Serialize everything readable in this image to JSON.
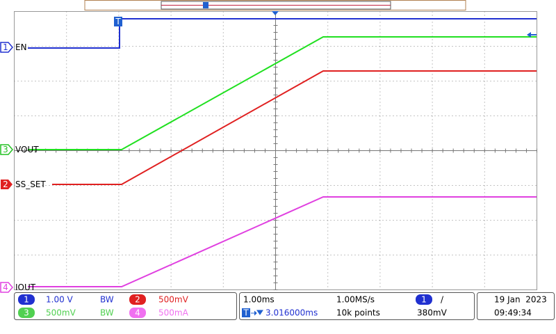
{
  "channels": [
    {
      "number": "1",
      "label": "EN"
    },
    {
      "number": "3",
      "label": "VOUT"
    },
    {
      "number": "2",
      "label": "SS_SET"
    },
    {
      "number": "4",
      "label": "IOUT"
    }
  ],
  "trigger_marker": "T",
  "status": {
    "ch1": {
      "number": "1",
      "scale": "1.00 V"
    },
    "ch2": {
      "number": "2",
      "scale": "500mV"
    },
    "ch3": {
      "number": "3",
      "scale": "500mV"
    },
    "ch4": {
      "number": "4",
      "scale": "500mA"
    },
    "bw": "BW",
    "timebase": "1.00ms",
    "sample_rate": "1.00MS/s",
    "delay": "3.016000ms",
    "points": "10k points",
    "trigger_source": "1",
    "trigger_slope": "/",
    "trigger_level": "380mV",
    "date": "19 Jan  2023",
    "time": "09:49:34"
  }
}
